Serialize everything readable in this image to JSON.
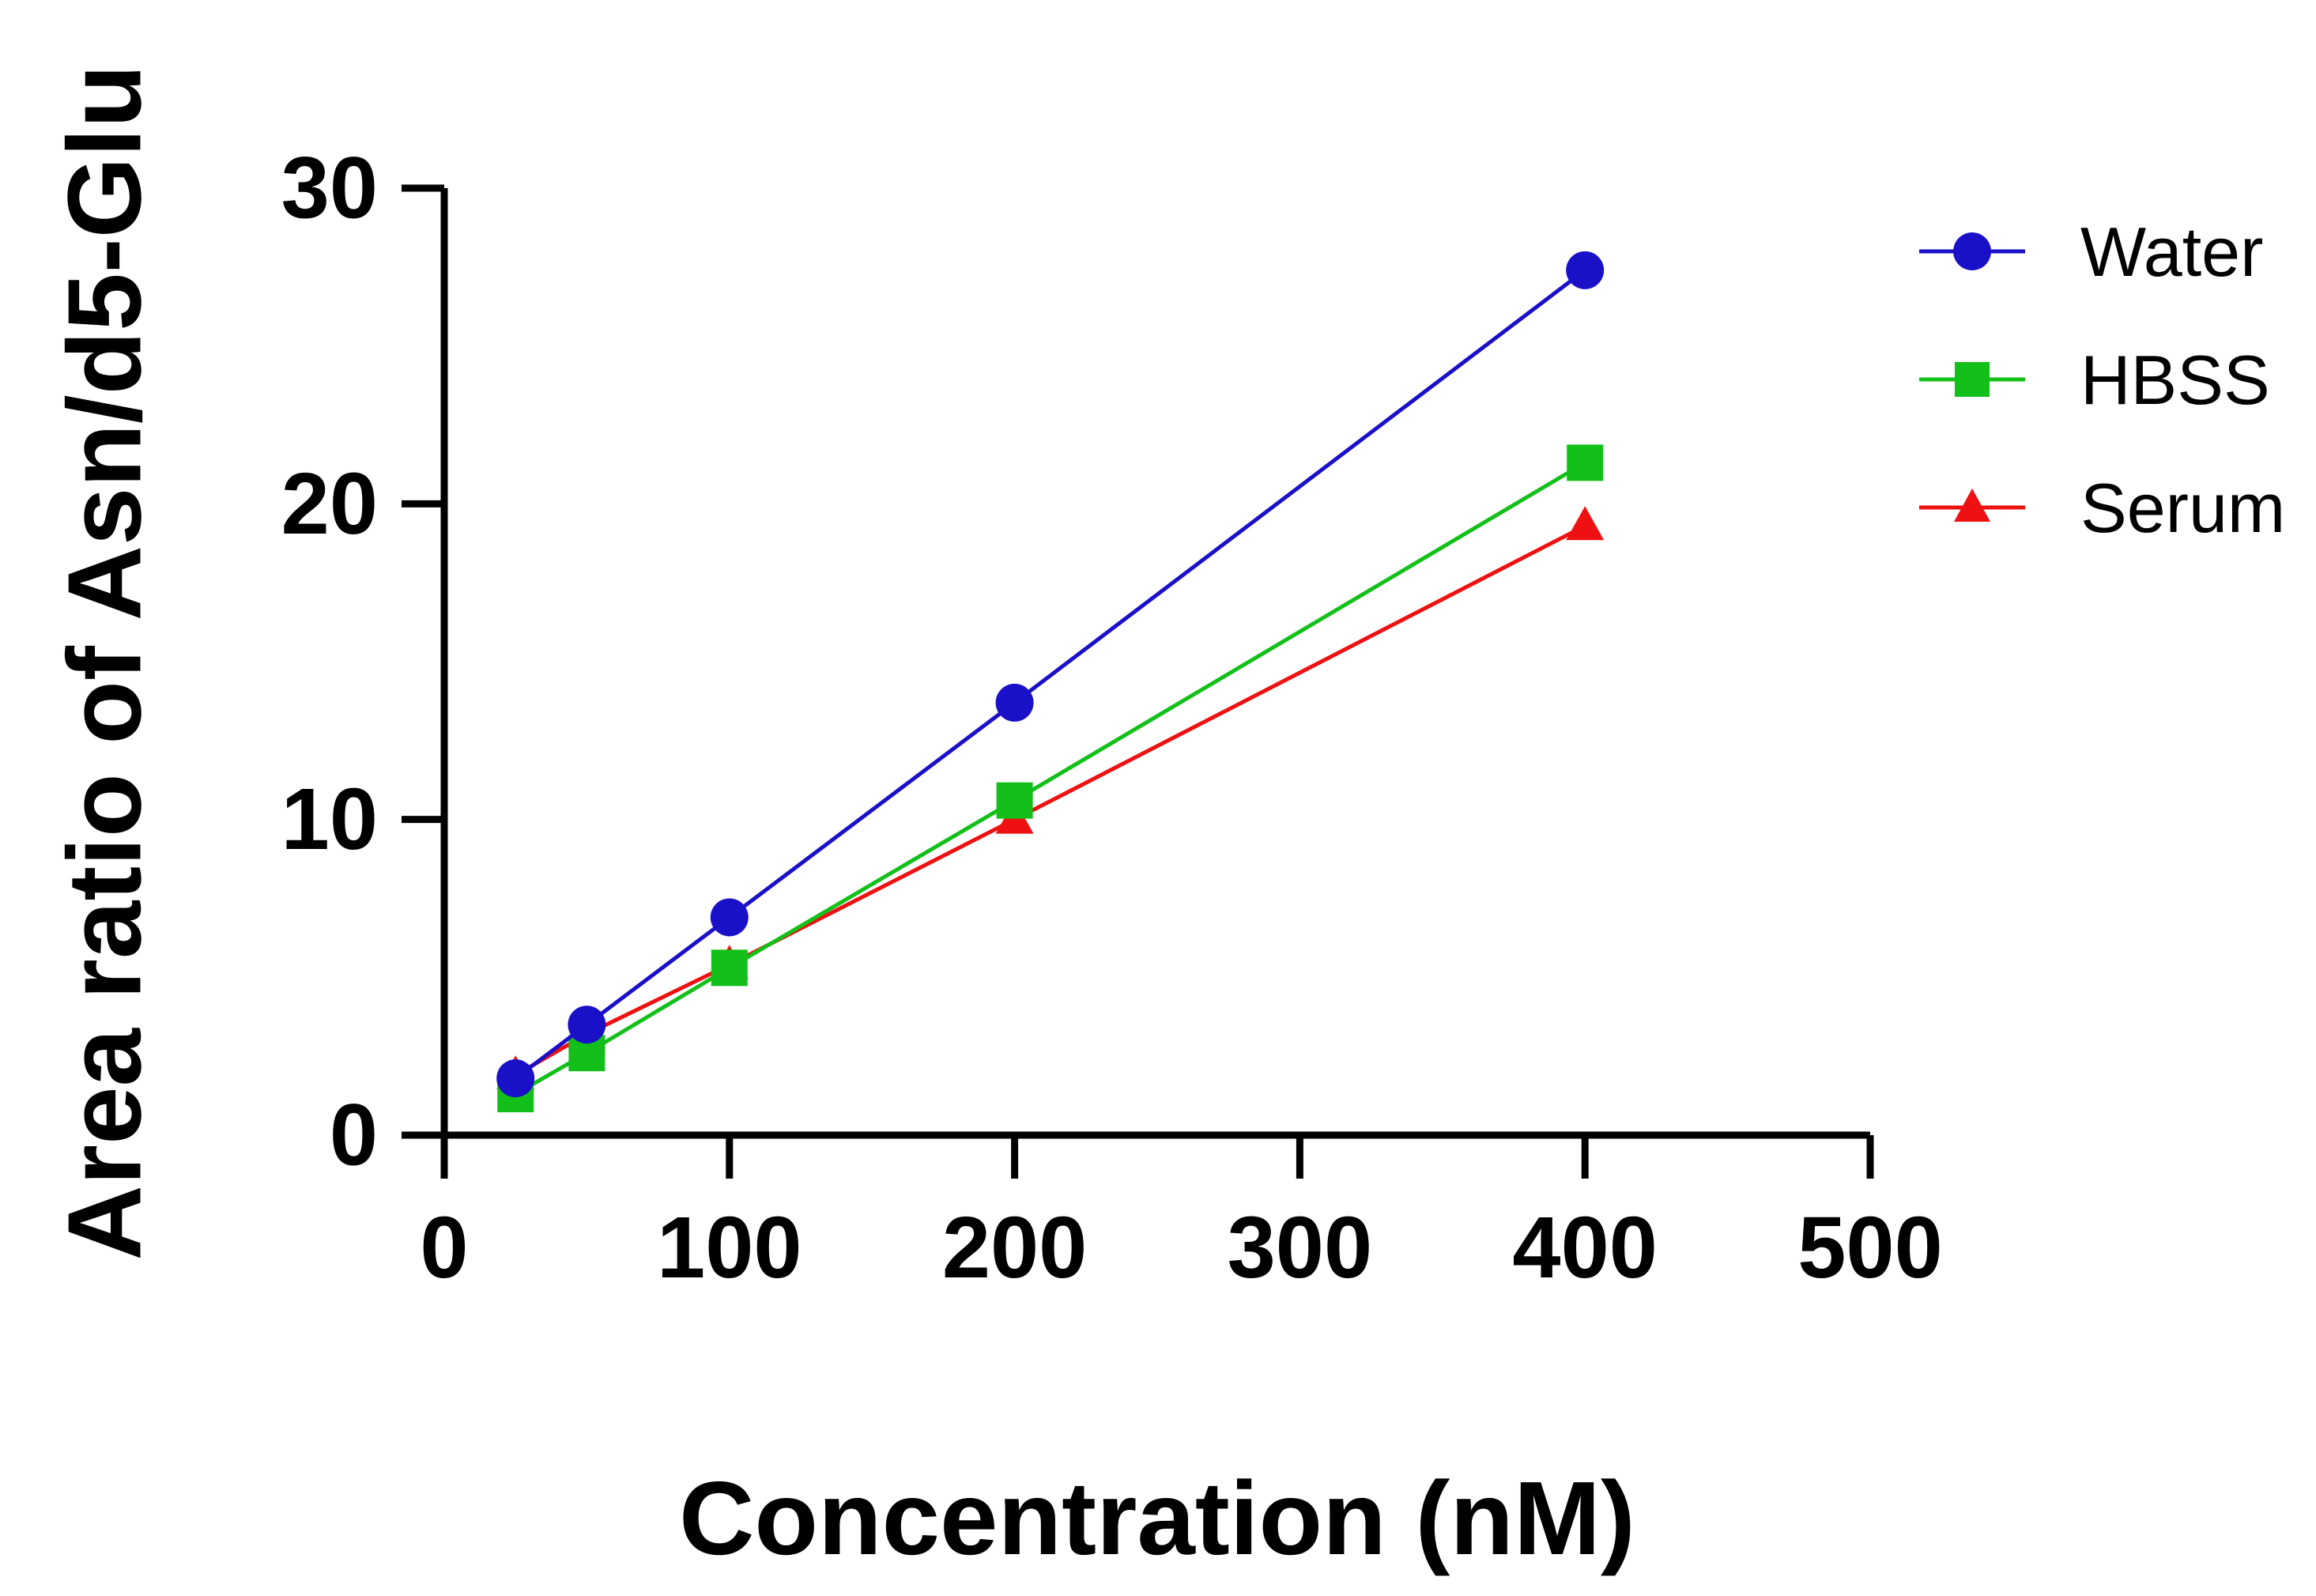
{
  "chart_data": {
    "type": "line",
    "title": "",
    "xlabel": "Concentration (nM)",
    "ylabel": "Area ratio of Asn/d5-Glu",
    "xlim": [
      0,
      500
    ],
    "ylim": [
      0,
      30
    ],
    "x_ticks": [
      0,
      100,
      200,
      300,
      400,
      500
    ],
    "y_ticks": [
      0,
      10,
      20,
      30
    ],
    "grid": false,
    "legend_position": "top-right",
    "x": [
      25,
      50,
      100,
      200,
      400
    ],
    "series": [
      {
        "name": "Water",
        "color": "#1a10c8",
        "marker": "circle",
        "values": [
          1.8,
          3.5,
          6.9,
          13.7,
          27.4
        ]
      },
      {
        "name": "HBSS",
        "color": "#13c01a",
        "marker": "square",
        "values": [
          1.3,
          2.6,
          5.3,
          10.6,
          21.3
        ]
      },
      {
        "name": "Serum",
        "color": "#ee1111",
        "marker": "triangle",
        "values": [
          1.9,
          3.2,
          5.4,
          10.0,
          19.3
        ]
      }
    ]
  }
}
